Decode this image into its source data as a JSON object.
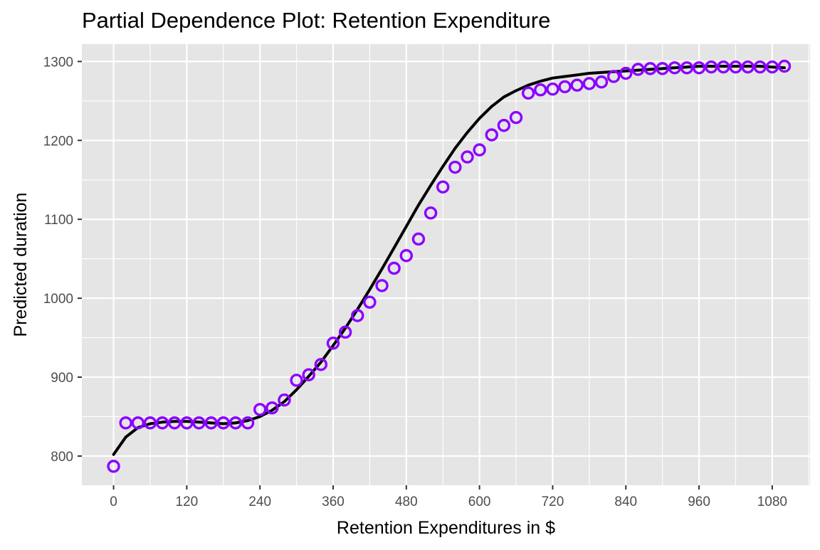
{
  "chart_data": {
    "type": "scatter",
    "title": "Partial Dependence Plot: Retention Expenditure",
    "xlabel": "Retention Expenditures in $",
    "ylabel": "Predicted duration",
    "xlim": [
      -52,
      1142
    ],
    "ylim": [
      763,
      1322
    ],
    "x_ticks": [
      0,
      120,
      240,
      360,
      480,
      600,
      720,
      840,
      960,
      1080
    ],
    "y_ticks": [
      800,
      900,
      1000,
      1100,
      1200,
      1300
    ],
    "grid": true,
    "legend": "none",
    "series": [
      {
        "kind": "points",
        "x": [
          0,
          20,
          40,
          60,
          80,
          100,
          120,
          140,
          160,
          180,
          200,
          220,
          240,
          260,
          280,
          300,
          320,
          340,
          360,
          380,
          400,
          420,
          440,
          460,
          480,
          500,
          520,
          540,
          560,
          580,
          600,
          620,
          640,
          660,
          680,
          700,
          720,
          740,
          760,
          780,
          800,
          820,
          840,
          860,
          880,
          900,
          920,
          940,
          960,
          980,
          1000,
          1020,
          1040,
          1060,
          1080,
          1100
        ],
        "y": [
          787,
          842,
          842,
          842,
          842,
          842,
          842,
          842,
          842,
          842,
          842,
          842,
          859,
          861,
          871,
          896,
          903,
          916,
          943,
          957,
          978,
          995,
          1016,
          1038,
          1054,
          1075,
          1108,
          1141,
          1166,
          1179,
          1188,
          1207,
          1219,
          1229,
          1260,
          1264,
          1265,
          1268,
          1270,
          1272,
          1274,
          1281,
          1285,
          1290,
          1291,
          1291,
          1292,
          1292,
          1292,
          1293,
          1293,
          1293,
          1293,
          1293,
          1293,
          1294
        ]
      },
      {
        "kind": "smooth",
        "x": [
          0,
          20,
          40,
          60,
          80,
          100,
          120,
          140,
          160,
          180,
          200,
          220,
          240,
          260,
          280,
          300,
          320,
          340,
          360,
          380,
          400,
          420,
          440,
          460,
          480,
          500,
          520,
          540,
          560,
          580,
          600,
          620,
          640,
          660,
          680,
          700,
          720,
          740,
          760,
          780,
          800,
          820,
          840,
          860,
          880,
          900,
          920,
          940,
          960,
          980,
          1000,
          1020,
          1040,
          1060,
          1080,
          1100
        ],
        "y": [
          802,
          824,
          836,
          841,
          843,
          844,
          844,
          843,
          842,
          841,
          842,
          845,
          850,
          858,
          869,
          884,
          901,
          919,
          940,
          962,
          986,
          1011,
          1037,
          1064,
          1091,
          1118,
          1143,
          1167,
          1190,
          1210,
          1228,
          1243,
          1255,
          1263,
          1270,
          1275,
          1279,
          1281,
          1283,
          1285,
          1286,
          1287,
          1288,
          1289,
          1290,
          1291,
          1292,
          1293,
          1294,
          1294,
          1294,
          1294,
          1294,
          1294,
          1293,
          1292
        ]
      }
    ],
    "point_color": "#8B00FF",
    "line_color": "#000000",
    "panel_color": "#E5E5E5",
    "grid_color": "#FFFFFF"
  }
}
